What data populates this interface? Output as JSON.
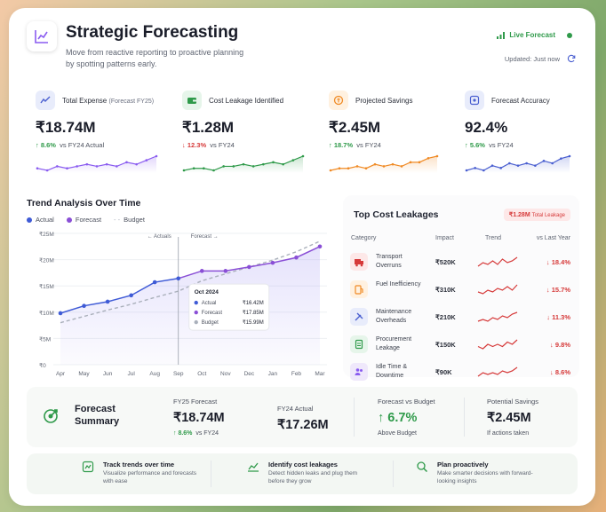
{
  "header": {
    "title": "Strategic Forecasting",
    "subtitle": "Move from reactive reporting to proactive planning by spotting patterns early.",
    "live_label": "Live Forecast",
    "updated_label": "Updated: Just now"
  },
  "kpis": [
    {
      "label": "Total Expense",
      "label_note": "(Forecast FY25)",
      "value": "₹18.74M",
      "delta": "8.6%",
      "direction": "up",
      "compare": "vs FY24 Actual",
      "color": "#8a5cf0",
      "icon": "trend-chart-icon",
      "spark": [
        6,
        5,
        7,
        6,
        7,
        8,
        7,
        8,
        7,
        9,
        8,
        10,
        12
      ]
    },
    {
      "label": "Cost Leakage Identified",
      "label_note": "",
      "value": "₹1.28M",
      "delta": "12.3%",
      "direction": "down",
      "compare": "vs FY24",
      "color": "#2f9a4a",
      "icon": "wallet-icon",
      "spark": [
        5,
        6,
        6,
        5,
        7,
        7,
        8,
        7,
        8,
        9,
        8,
        10,
        12
      ]
    },
    {
      "label": "Projected Savings",
      "label_note": "",
      "value": "₹2.45M",
      "delta": "18.7%",
      "direction": "up",
      "compare": "vs FY24",
      "color": "#f08a24",
      "icon": "savings-icon",
      "spark": [
        5,
        6,
        6,
        7,
        6,
        8,
        7,
        8,
        7,
        9,
        9,
        11,
        12
      ]
    },
    {
      "label": "Forecast Accuracy",
      "label_note": "",
      "value": "92.4%",
      "delta": "5.6%",
      "direction": "up",
      "compare": "vs FY24",
      "color": "#4a5fd0",
      "icon": "target-icon",
      "spark": [
        6,
        7,
        6,
        8,
        7,
        9,
        8,
        9,
        8,
        10,
        9,
        11,
        12
      ]
    }
  ],
  "trend": {
    "title": "Trend Analysis Over Time",
    "legend": [
      "Actual",
      "Forecast",
      "Budget"
    ],
    "actuals_marker": "Actuals",
    "forecast_marker": "Forecast",
    "tooltip": {
      "title": "Oct 2024",
      "rows": [
        {
          "label": "Actual",
          "value": "₹16.42M"
        },
        {
          "label": "Forecast",
          "value": "₹17.85M"
        },
        {
          "label": "Budget",
          "value": "₹15.99M"
        }
      ]
    }
  },
  "chart_data": {
    "type": "line",
    "categories": [
      "Apr",
      "May",
      "Jun",
      "Jul",
      "Aug",
      "Sep",
      "Oct",
      "Nov",
      "Dec",
      "Jan",
      "Feb",
      "Mar"
    ],
    "yticks": [
      "₹0",
      "₹5M",
      "₹10M",
      "₹15M",
      "₹20M",
      "₹25M"
    ],
    "ylim": [
      0,
      25
    ],
    "series": [
      {
        "name": "Actual",
        "color": "#3f5bd6",
        "values": [
          9.8,
          11.2,
          12.0,
          13.2,
          15.7,
          16.42,
          null,
          null,
          null,
          null,
          null,
          null
        ]
      },
      {
        "name": "Forecast",
        "color": "#8a4fd6",
        "values": [
          null,
          null,
          null,
          null,
          null,
          16.42,
          17.85,
          17.85,
          18.6,
          19.4,
          20.4,
          22.5
        ]
      },
      {
        "name": "Budget",
        "color": "#aab0bb",
        "values": [
          8.0,
          9.2,
          10.4,
          11.5,
          12.8,
          14.0,
          15.99,
          17.3,
          18.6,
          19.9,
          21.5,
          23.5
        ]
      }
    ]
  },
  "leakage": {
    "title": "Top Cost Leakages",
    "badge_value": "₹1.28M",
    "badge_label": "Total Leakage",
    "headers": [
      "Category",
      "Impact",
      "Trend",
      "vs Last Year"
    ],
    "rows": [
      {
        "category": "Transport Overruns",
        "impact": "₹520K",
        "change": "18.4%",
        "icon": "truck-icon",
        "bg": "#fde8e8",
        "fg": "#d63a3a",
        "spark": [
          4,
          6,
          5,
          7,
          5,
          8,
          6,
          7,
          9
        ]
      },
      {
        "category": "Fuel Inefficiency",
        "impact": "₹310K",
        "change": "15.7%",
        "icon": "fuel-icon",
        "bg": "#fff1e0",
        "fg": "#f08a24",
        "spark": [
          5,
          4,
          6,
          5,
          7,
          6,
          8,
          6,
          9
        ]
      },
      {
        "category": "Maintenance Overheads",
        "impact": "₹210K",
        "change": "11.3%",
        "icon": "tools-icon",
        "bg": "#e8ecfb",
        "fg": "#4a5fd0",
        "spark": [
          4,
          5,
          4,
          6,
          5,
          7,
          6,
          8,
          9
        ]
      },
      {
        "category": "Procurement Leakage",
        "impact": "₹150K",
        "change": "9.8%",
        "icon": "document-icon",
        "bg": "#e6f5ea",
        "fg": "#2f9a4a",
        "spark": [
          5,
          4,
          6,
          5,
          6,
          5,
          7,
          6,
          8
        ]
      },
      {
        "category": "Idle Time & Downtime",
        "impact": "₹90K",
        "change": "8.6%",
        "icon": "people-icon",
        "bg": "#efe8fb",
        "fg": "#8a5cf0",
        "spark": [
          4,
          6,
          5,
          6,
          5,
          7,
          6,
          7,
          9
        ]
      }
    ]
  },
  "summary": {
    "title": "Forecast Summary",
    "cols": [
      {
        "label": "FY25 Forecast",
        "value": "₹18.74M",
        "delta": "8.6%",
        "sub": "vs FY24"
      },
      {
        "label": "FY24 Actual",
        "value": "₹17.26M",
        "delta": "",
        "sub": ""
      },
      {
        "label": "Forecast vs Budget",
        "value": "6.7%",
        "delta": "",
        "sub": "Above Budget"
      },
      {
        "label": "Potential Savings",
        "value": "₹2.45M",
        "delta": "",
        "sub": "If actions taken"
      }
    ]
  },
  "tips": [
    {
      "title": "Track trends over time",
      "desc": "Visualize performance and forecasts with ease",
      "icon": "tracking-icon"
    },
    {
      "title": "Identify cost leakages",
      "desc": "Detect hidden leaks and plug them before they grow",
      "icon": "trend-icon"
    },
    {
      "title": "Plan proactively",
      "desc": "Make smarter decisions with forward-looking insights",
      "icon": "search-icon"
    }
  ]
}
